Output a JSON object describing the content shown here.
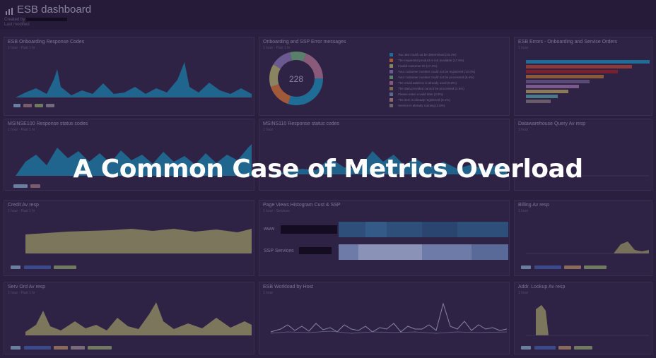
{
  "header": {
    "title": "ESB dashboard",
    "subtitle_line1": "Created by",
    "subtitle_line2": "Last modified"
  },
  "panels": {
    "p1": {
      "title": "ESB Onboarding Response Codes",
      "sub": "1 hour · Past 1 hr"
    },
    "p2": {
      "title": "Onboarding and SSP Error messages",
      "sub": "1 hour · Past 1 hr"
    },
    "p3": {
      "title": "ESB Errors - Onboarding and Service Orders",
      "sub": "1 hour"
    },
    "p4": {
      "title": "MSINSE100 Response status codes",
      "sub": "1 hour · Past 1 hr"
    },
    "p5": {
      "title": "MSINS110 Response status codes",
      "sub": "1 hour"
    },
    "p6": {
      "title": "Datawarehouse Query Av resp",
      "sub": "1 hour"
    },
    "p7": {
      "title": "Credit Av resp",
      "sub": "1 hour · Past 1 hr"
    },
    "p8": {
      "title": "Page Views Histogram Cust & SSP",
      "sub": "1 hour · Services"
    },
    "p9": {
      "title": "Billing Av resp",
      "sub": "1 hour"
    },
    "p10": {
      "title": "Serv Ord Av resp",
      "sub": "1 hour · Past 1 hr"
    },
    "p11": {
      "title": "ESB Workload by Host",
      "sub": "1 hour"
    },
    "p12": {
      "title": "Addr. Lookup Av resp",
      "sub": "1 hour"
    }
  },
  "donut": {
    "value": "228"
  },
  "heatmap_rows": [
    "www",
    "SSP Services"
  ],
  "error_messages": [
    "Tax rate could not be determined (23.4%)",
    "The requested product is not available (17.9%)",
    "Invalid customer ID (17.2%)",
    "Your customer number could not be registered (12.0%)",
    "Your customer number could not be processed (9.4%)",
    "The email address is already used (5.9%)",
    "The data provided cannot be processed (4.5%)",
    "Please enter a valid date (3.9%)",
    "The item is already registered (3.1%)",
    "Service is already running (2.6%)"
  ],
  "colors": {
    "series_blue": "#1f6d96",
    "series_beige": "#8a8560",
    "overlay_text": "#ffffff"
  },
  "overlay": {
    "title": "A Common Case of Metrics Overload"
  }
}
